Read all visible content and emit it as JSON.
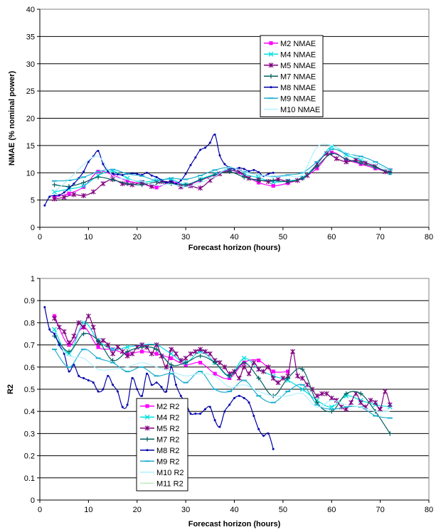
{
  "chart_data": [
    {
      "type": "line",
      "xlabel": "Forecast horizon (hours)",
      "ylabel": "NMAE (% nominal power)",
      "xlim": [
        0,
        80
      ],
      "ylim": [
        0,
        40
      ],
      "x_ticks": [
        0,
        10,
        20,
        30,
        40,
        50,
        60,
        70,
        80
      ],
      "y_ticks": [
        0,
        5,
        10,
        15,
        20,
        25,
        30,
        35,
        40
      ],
      "grid": "horizontal",
      "legend_position": "center-right",
      "series": [
        {
          "name": "M2 NMAE",
          "color": "#ff00ff",
          "marker": "square",
          "x": [
            3,
            6,
            9,
            12,
            15,
            18,
            21,
            24,
            27,
            30,
            33,
            36,
            39,
            42,
            45,
            48,
            51,
            54,
            57,
            60,
            63,
            66,
            69,
            72
          ],
          "y": [
            5.5,
            6.2,
            7.4,
            10.2,
            9.6,
            8.5,
            8.0,
            7.3,
            8.4,
            7.7,
            8.6,
            9.6,
            10.5,
            9.5,
            8.2,
            7.6,
            8.1,
            9.0,
            10.8,
            13.7,
            12.4,
            11.6,
            10.8,
            10.0
          ]
        },
        {
          "name": "M4 NMAE",
          "color": "#00e0e0",
          "marker": "x",
          "x": [
            3,
            6,
            9,
            12,
            15,
            18,
            21,
            24,
            27,
            30,
            33,
            36,
            39,
            42,
            45,
            48,
            51,
            54,
            57,
            60,
            63,
            66,
            69,
            72
          ],
          "y": [
            6.5,
            7.0,
            7.6,
            9.5,
            10.3,
            9.0,
            8.3,
            8.6,
            8.8,
            7.8,
            8.8,
            9.8,
            10.6,
            9.7,
            9.1,
            8.3,
            8.5,
            9.1,
            11.6,
            14.8,
            13.3,
            12.3,
            11.1,
            10.0
          ]
        },
        {
          "name": "M5 NMAE",
          "color": "#800080",
          "marker": "star",
          "x": [
            3,
            5,
            7,
            9,
            11,
            13,
            15,
            17,
            19,
            21,
            23,
            25,
            27,
            29,
            31,
            33,
            35,
            37,
            39,
            41,
            43,
            45,
            47,
            49,
            51,
            53,
            55,
            57,
            59,
            61,
            63,
            65,
            67,
            69,
            71,
            72
          ],
          "y": [
            5.2,
            5.5,
            6.0,
            5.8,
            6.5,
            8.0,
            8.8,
            8.0,
            7.8,
            8.2,
            7.5,
            8.4,
            8.2,
            7.4,
            7.6,
            7.2,
            8.6,
            9.8,
            10.4,
            10.2,
            9.0,
            8.7,
            8.4,
            8.8,
            8.4,
            8.6,
            9.5,
            11.6,
            13.5,
            12.6,
            12.0,
            12.3,
            11.8,
            11.2,
            10.2,
            10.4
          ]
        },
        {
          "name": "M7 NMAE",
          "color": "#006060",
          "marker": "plus",
          "x": [
            3,
            6,
            9,
            12,
            15,
            18,
            21,
            24,
            27,
            30,
            33,
            36,
            39,
            42,
            45,
            48,
            51,
            54,
            57,
            60,
            63,
            66,
            69,
            72
          ],
          "y": [
            7.8,
            7.5,
            8.2,
            9.2,
            8.7,
            8.0,
            7.8,
            8.3,
            8.0,
            7.8,
            8.7,
            9.6,
            10.2,
            9.2,
            8.6,
            8.6,
            8.4,
            9.0,
            11.2,
            13.5,
            12.5,
            11.8,
            11.0,
            10.0
          ]
        },
        {
          "name": "M8 NMAE",
          "color": "#0000aa",
          "marker": "dot",
          "x": [
            1,
            2,
            3,
            4,
            5,
            6,
            7,
            8,
            9,
            10,
            11,
            12,
            13,
            14,
            15,
            16,
            17,
            18,
            19,
            20,
            21,
            22,
            23,
            24,
            25,
            26,
            27,
            28,
            29,
            30,
            31,
            32,
            33,
            34,
            35,
            36,
            37,
            38,
            39,
            40,
            41,
            42,
            43,
            44,
            45,
            46,
            47,
            48
          ],
          "y": [
            4.0,
            5.6,
            5.8,
            5.9,
            6.4,
            7.2,
            8.0,
            9.0,
            10.2,
            12.0,
            13.0,
            14.0,
            11.6,
            10.3,
            9.8,
            9.7,
            9.6,
            9.8,
            9.9,
            9.8,
            9.6,
            10.0,
            9.5,
            9.2,
            8.7,
            8.2,
            8.4,
            8.0,
            8.6,
            9.8,
            11.4,
            12.8,
            14.2,
            14.6,
            15.5,
            17.0,
            13.2,
            11.6,
            11.0,
            10.7,
            10.9,
            10.7,
            10.3,
            10.5,
            10.1,
            9.4,
            9.8,
            10.0
          ]
        },
        {
          "name": "M9 NMAE",
          "color": "#20b0d0",
          "marker": "dash",
          "x": [
            3,
            6,
            9,
            12,
            15,
            18,
            21,
            24,
            27,
            30,
            33,
            36,
            39,
            42,
            45,
            48,
            51,
            54,
            57,
            60,
            63,
            66,
            69,
            72
          ],
          "y": [
            8.5,
            8.6,
            9.2,
            10.2,
            10.6,
            9.8,
            9.4,
            8.6,
            9.0,
            8.8,
            9.5,
            10.5,
            11.0,
            10.2,
            9.6,
            9.3,
            9.6,
            10.0,
            12.0,
            14.3,
            13.5,
            13.0,
            12.0,
            10.6
          ]
        },
        {
          "name": "M10 NMAE",
          "color": "#b0f0ff",
          "marker": "none",
          "x": [
            3,
            6,
            9,
            12,
            15,
            18,
            21,
            24,
            27,
            30,
            33,
            36,
            39,
            42,
            45,
            48,
            51,
            54,
            57,
            60,
            63,
            66,
            69,
            72
          ],
          "y": [
            6.6,
            8.8,
            11.5,
            13.0,
            9.5,
            8.8,
            8.4,
            7.7,
            7.9,
            7.4,
            8.2,
            9.3,
            11.0,
            10.1,
            9.6,
            9.2,
            9.4,
            9.7,
            14.7,
            15.0,
            13.7,
            12.6,
            11.5,
            10.4
          ]
        }
      ]
    },
    {
      "type": "line",
      "xlabel": "Forecast horizon (hours)",
      "ylabel": "R2",
      "xlim": [
        0,
        80
      ],
      "ylim": [
        0,
        1
      ],
      "x_ticks": [
        0,
        10,
        20,
        30,
        40,
        50,
        60,
        70,
        80
      ],
      "y_ticks": [
        0,
        0.1,
        0.2,
        0.3,
        0.4,
        0.5,
        0.6,
        0.7,
        0.8,
        0.9,
        1
      ],
      "grid": "horizontal",
      "legend_position": "bottom-left",
      "series": [
        {
          "name": "M2 R2",
          "color": "#ff00ff",
          "marker": "square",
          "x": [
            3,
            6,
            9,
            12,
            15,
            18,
            21,
            24,
            27,
            30,
            33,
            36,
            39,
            42,
            45,
            48,
            51
          ],
          "y": [
            0.83,
            0.7,
            0.78,
            0.69,
            0.68,
            0.66,
            0.67,
            0.66,
            0.64,
            0.61,
            0.62,
            0.57,
            0.55,
            0.62,
            0.63,
            0.58,
            0.58
          ]
        },
        {
          "name": "M4 R2",
          "color": "#00e0e0",
          "marker": "x",
          "x": [
            3,
            6,
            9,
            12,
            15,
            18,
            21,
            24,
            27,
            30,
            33,
            36,
            39,
            42,
            45,
            48,
            51,
            54,
            57,
            60,
            63,
            66,
            69,
            72
          ],
          "y": [
            0.77,
            0.66,
            0.8,
            0.72,
            0.68,
            0.69,
            0.7,
            0.7,
            0.66,
            0.62,
            0.67,
            0.62,
            0.56,
            0.64,
            0.59,
            0.56,
            0.54,
            0.5,
            0.45,
            0.42,
            0.47,
            0.45,
            0.43,
            0.42
          ]
        },
        {
          "name": "M5 R2",
          "color": "#800080",
          "marker": "star",
          "x": [
            3,
            4,
            5,
            6,
            7,
            8,
            9,
            10,
            11,
            12,
            13,
            14,
            15,
            16,
            17,
            18,
            19,
            20,
            21,
            22,
            23,
            24,
            25,
            26,
            27,
            28,
            29,
            30,
            31,
            32,
            33,
            34,
            35,
            36,
            37,
            38,
            39,
            40,
            41,
            42,
            43,
            44,
            45,
            46,
            47,
            48,
            49,
            50,
            51,
            52,
            53,
            54,
            55,
            56,
            57,
            58,
            59,
            60,
            61,
            62,
            63,
            64,
            65,
            66,
            67,
            68,
            69,
            70,
            71,
            72
          ],
          "y": [
            0.82,
            0.78,
            0.76,
            0.71,
            0.74,
            0.8,
            0.78,
            0.83,
            0.78,
            0.71,
            0.72,
            0.7,
            0.66,
            0.69,
            0.67,
            0.65,
            0.66,
            0.69,
            0.7,
            0.69,
            0.66,
            0.7,
            0.65,
            0.6,
            0.68,
            0.66,
            0.63,
            0.64,
            0.66,
            0.67,
            0.68,
            0.67,
            0.66,
            0.63,
            0.62,
            0.6,
            0.57,
            0.58,
            0.55,
            0.6,
            0.57,
            0.62,
            0.59,
            0.58,
            0.6,
            0.55,
            0.53,
            0.55,
            0.56,
            0.67,
            0.56,
            0.55,
            0.52,
            0.5,
            0.47,
            0.48,
            0.48,
            0.46,
            0.45,
            0.42,
            0.41,
            0.44,
            0.48,
            0.44,
            0.42,
            0.45,
            0.44,
            0.41,
            0.49,
            0.43
          ]
        },
        {
          "name": "M7 R2",
          "color": "#006060",
          "marker": "plus",
          "x": [
            3,
            6,
            9,
            12,
            15,
            18,
            21,
            24,
            27,
            30,
            33,
            36,
            39,
            42,
            45,
            48,
            51,
            54,
            57,
            60,
            63,
            66,
            69,
            72
          ],
          "y": [
            0.74,
            0.67,
            0.75,
            0.72,
            0.63,
            0.67,
            0.69,
            0.68,
            0.61,
            0.62,
            0.65,
            0.62,
            0.56,
            0.62,
            0.55,
            0.47,
            0.55,
            0.59,
            0.44,
            0.4,
            0.48,
            0.48,
            0.4,
            0.3
          ]
        },
        {
          "name": "M8 R2",
          "color": "#0000aa",
          "marker": "dot",
          "x": [
            1,
            2,
            3,
            4,
            5,
            6,
            7,
            8,
            9,
            10,
            11,
            12,
            13,
            14,
            15,
            16,
            17,
            18,
            19,
            20,
            21,
            22,
            23,
            24,
            25,
            26,
            27,
            28,
            29,
            30,
            31,
            32,
            33,
            34,
            35,
            36,
            37,
            38,
            39,
            40,
            41,
            42,
            43,
            44,
            45,
            46,
            47,
            48
          ],
          "y": [
            0.87,
            0.77,
            0.75,
            0.7,
            0.66,
            0.58,
            0.61,
            0.56,
            0.55,
            0.54,
            0.53,
            0.49,
            0.5,
            0.56,
            0.52,
            0.49,
            0.42,
            0.43,
            0.55,
            0.5,
            0.47,
            0.57,
            0.52,
            0.53,
            0.51,
            0.49,
            0.6,
            0.52,
            0.47,
            0.44,
            0.39,
            0.39,
            0.39,
            0.41,
            0.42,
            0.36,
            0.33,
            0.4,
            0.43,
            0.46,
            0.47,
            0.46,
            0.44,
            0.38,
            0.32,
            0.29,
            0.3,
            0.23
          ]
        },
        {
          "name": "M9 R2",
          "color": "#20b0d0",
          "marker": "dash",
          "x": [
            3,
            6,
            9,
            12,
            15,
            18,
            21,
            24,
            27,
            30,
            33,
            36,
            39,
            42,
            45,
            48,
            51,
            54,
            57,
            60,
            63,
            66,
            69,
            72
          ],
          "y": [
            0.68,
            0.6,
            0.68,
            0.64,
            0.62,
            0.58,
            0.6,
            0.56,
            0.57,
            0.53,
            0.58,
            0.5,
            0.49,
            0.54,
            0.47,
            0.44,
            0.49,
            0.52,
            0.43,
            0.41,
            0.42,
            0.42,
            0.38,
            0.37
          ]
        },
        {
          "name": "M10 R2",
          "color": "#b0f0ff",
          "marker": "none",
          "x": [
            3,
            6,
            9,
            12,
            15,
            18,
            21,
            24,
            27,
            30,
            33,
            36,
            39,
            42,
            45,
            48,
            51,
            54,
            57,
            60,
            63,
            66,
            69,
            72
          ],
          "y": [
            0.71,
            0.65,
            0.64,
            0.59,
            0.59,
            0.6,
            0.62,
            0.6,
            0.58,
            0.56,
            0.57,
            0.56,
            0.51,
            0.52,
            0.49,
            0.47,
            0.47,
            0.48,
            0.42,
            0.45,
            0.43,
            0.42,
            0.4,
            0.4
          ]
        },
        {
          "name": "M11 R2",
          "color": "#c0e8c0",
          "marker": "none",
          "x": [],
          "y": []
        }
      ]
    }
  ]
}
